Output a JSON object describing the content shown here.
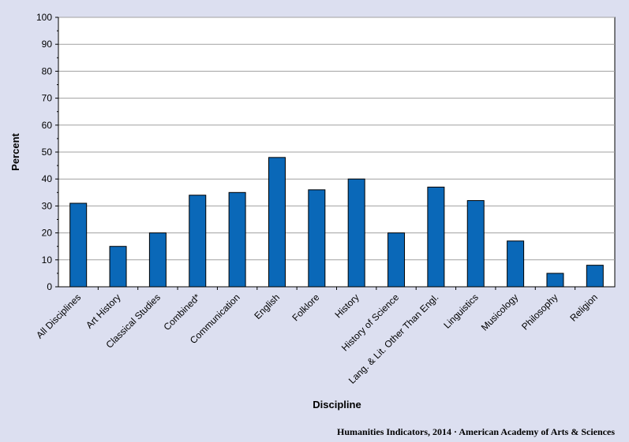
{
  "chart_data": {
    "type": "bar",
    "xlabel": "Discipline",
    "ylabel": "Percent",
    "ylim": [
      0,
      100
    ],
    "yticks": [
      0,
      10,
      20,
      30,
      40,
      50,
      60,
      70,
      80,
      90,
      100
    ],
    "grid": true,
    "categories": [
      "All Disciplines",
      "Art History",
      "Classical Studies",
      "Combined*",
      "Communication",
      "English",
      "Folklore",
      "History",
      "History of Science",
      "Lang. & Lit. Other Than Engl.",
      "Linguistics",
      "Musicology",
      "Philosophy",
      "Religion"
    ],
    "values": [
      31,
      15,
      20,
      34,
      35,
      48,
      36,
      40,
      20,
      37,
      32,
      17,
      5,
      8
    ],
    "bar_color": "#0a68b8"
  },
  "credit": "Humanities  Indicators, 2014 · American Academy  of Arts & Sciences"
}
